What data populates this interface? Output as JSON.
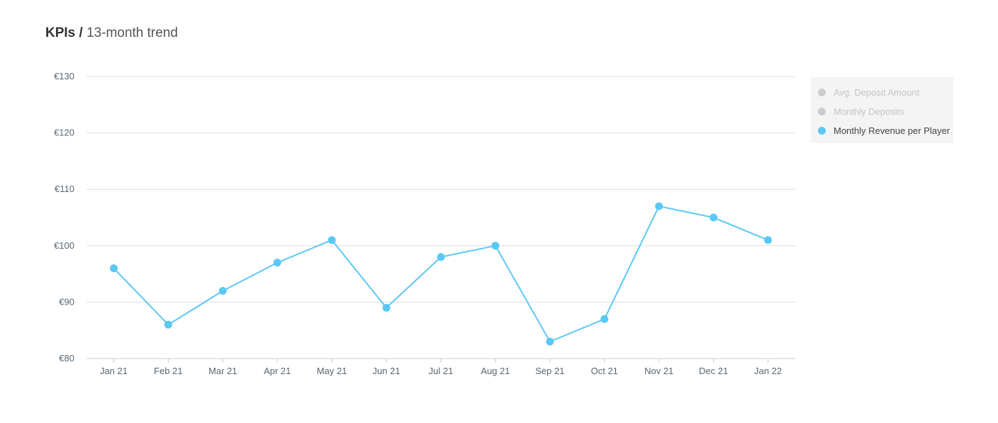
{
  "header": {
    "title_bold": "KPIs",
    "separator": "/",
    "title_light": "13-month trend"
  },
  "colors": {
    "series": "#5bc8f5",
    "inactive": "#cccccc",
    "grid": "#dddddd",
    "axis_text": "#5a6670"
  },
  "legend": {
    "items": [
      {
        "label": "Avg. Deposit Amount",
        "active": false
      },
      {
        "label": "Monthly Deposits",
        "active": false
      },
      {
        "label": "Monthly Revenue per Player",
        "active": true
      }
    ]
  },
  "chart_data": {
    "type": "line",
    "categories": [
      "Jan 21",
      "Feb 21",
      "Mar 21",
      "Apr 21",
      "May 21",
      "Jun 21",
      "Jul 21",
      "Aug 21",
      "Sep 21",
      "Oct 21",
      "Nov 21",
      "Dec 21",
      "Jan 22"
    ],
    "series": [
      {
        "name": "Monthly Revenue per Player",
        "values": [
          96,
          86,
          92,
          97,
          101,
          89,
          98,
          100,
          83,
          87,
          107,
          105,
          101
        ]
      }
    ],
    "ylim": [
      80,
      130
    ],
    "yticks": [
      80,
      90,
      100,
      110,
      120,
      130
    ],
    "ytick_labels": [
      "€80",
      "€90",
      "€100",
      "€110",
      "€120",
      "€130"
    ],
    "grid": true,
    "legend_position": "top-right"
  }
}
